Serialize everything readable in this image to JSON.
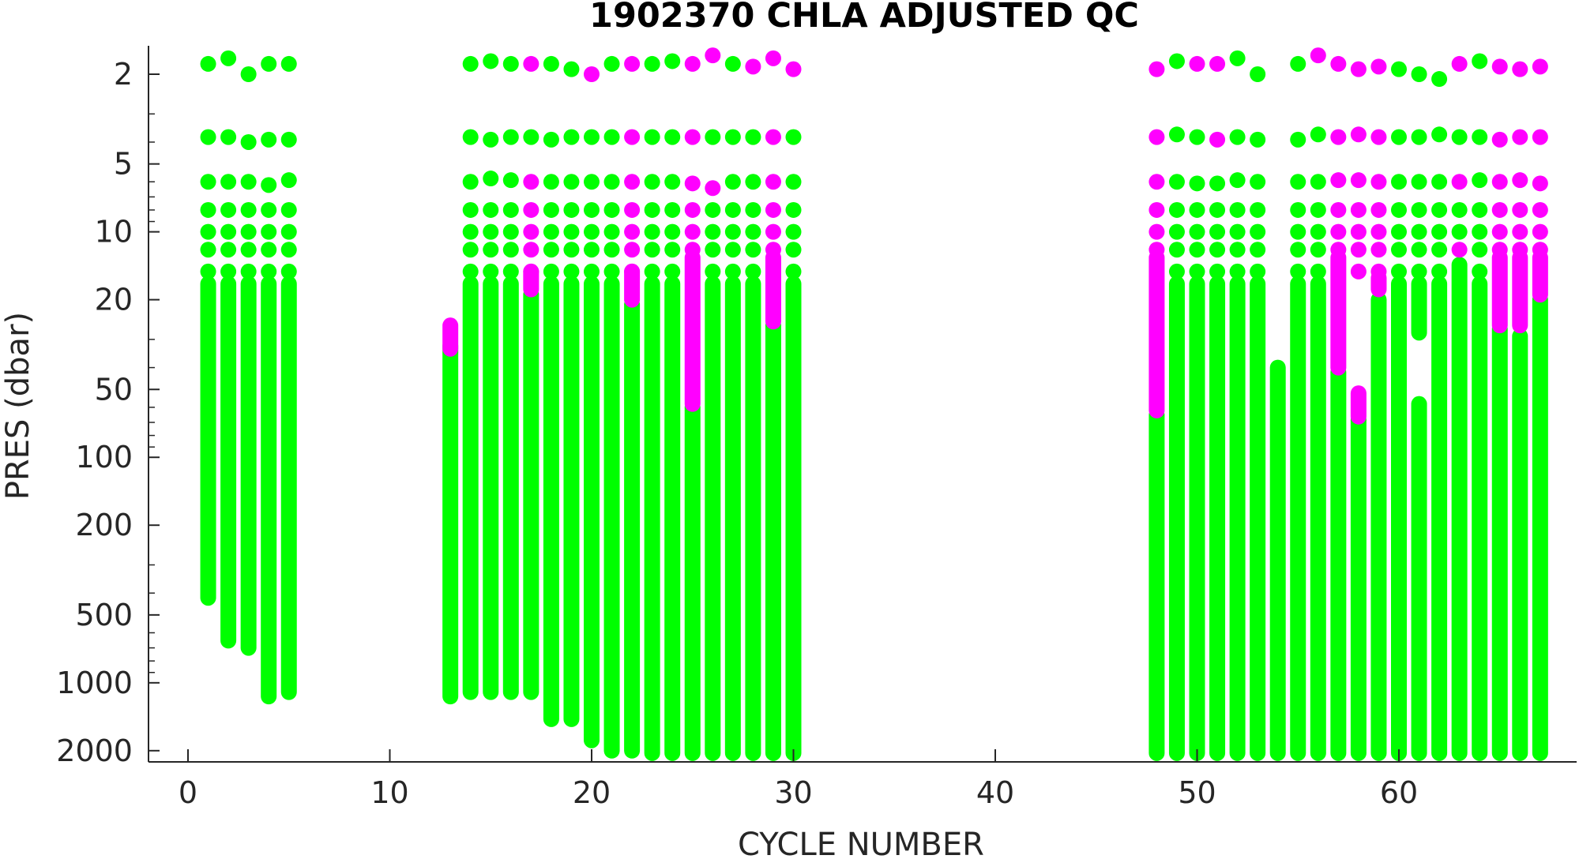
{
  "chart_data": {
    "type": "scatter",
    "title": "1902370  CHLA ADJUSTED QC",
    "xlabel": "CYCLE NUMBER",
    "ylabel": "PRES (dbar)",
    "xlim": [
      -2,
      69
    ],
    "ylim": [
      1.5,
      2300
    ],
    "y_scale": "log",
    "y_reversed": true,
    "xticks": [
      "0",
      "10",
      "20",
      "30",
      "40",
      "50",
      "60"
    ],
    "yticks": [
      "2",
      "5",
      "10",
      "20",
      "50",
      "100",
      "200",
      "500",
      "1000",
      "2000"
    ],
    "legend": "none",
    "grid": false,
    "series": [
      {
        "flag_color": "#00ff00",
        "profiles": [
          {
            "cycle": 1,
            "levels": [
              1.8,
              3.8,
              6,
              8,
              10,
              12,
              15
            ],
            "continuous": [
              17,
              420
            ]
          },
          {
            "cycle": 2,
            "levels": [
              1.7,
              3.8,
              6,
              8,
              10,
              12,
              15
            ],
            "continuous": [
              17,
              650
            ]
          },
          {
            "cycle": 3,
            "levels": [
              2.0,
              4.0,
              6,
              8,
              10,
              12,
              15
            ],
            "continuous": [
              17,
              700
            ]
          },
          {
            "cycle": 4,
            "levels": [
              1.8,
              3.9,
              6.2,
              8,
              10,
              12,
              15
            ],
            "continuous": [
              17,
              1150
            ]
          },
          {
            "cycle": 5,
            "levels": [
              1.8,
              3.9,
              5.9,
              8,
              10,
              12,
              15
            ],
            "continuous": [
              17,
              1100
            ]
          },
          {
            "cycle": 13,
            "levels": [],
            "continuous": [
              32,
              1150
            ]
          },
          {
            "cycle": 14,
            "levels": [
              1.8,
              3.8,
              6,
              8,
              10,
              12,
              15
            ],
            "continuous": [
              17,
              1100
            ]
          },
          {
            "cycle": 15,
            "levels": [
              1.75,
              3.9,
              5.8,
              8,
              10,
              12,
              15
            ],
            "continuous": [
              17,
              1100
            ]
          },
          {
            "cycle": 16,
            "levels": [
              1.8,
              3.8,
              5.9,
              8,
              10,
              12,
              15
            ],
            "continuous": [
              17,
              1100
            ]
          },
          {
            "cycle": 17,
            "levels": [
              3.8
            ],
            "continuous": [
              19,
              1100
            ]
          },
          {
            "cycle": 18,
            "levels": [
              1.8,
              3.9,
              6,
              8,
              10,
              12,
              15
            ],
            "continuous": [
              17,
              1450
            ]
          },
          {
            "cycle": 19,
            "levels": [
              1.9,
              3.8,
              6,
              8,
              10,
              12,
              15
            ],
            "continuous": [
              17,
              1450
            ]
          },
          {
            "cycle": 20,
            "levels": [
              3.8,
              6,
              8,
              10,
              12,
              15
            ],
            "continuous": [
              17,
              1800
            ]
          },
          {
            "cycle": 21,
            "levels": [
              1.8,
              3.8,
              6,
              8,
              10,
              12,
              15
            ],
            "continuous": [
              17,
              2000
            ]
          },
          {
            "cycle": 22,
            "levels": [],
            "continuous": [
              21,
              2000
            ]
          },
          {
            "cycle": 23,
            "levels": [
              1.8,
              3.8,
              6,
              8,
              10,
              12,
              15
            ],
            "continuous": [
              17,
              2050
            ]
          },
          {
            "cycle": 24,
            "levels": [
              1.75,
              3.8,
              6,
              8,
              10,
              12,
              15
            ],
            "continuous": [
              17,
              2050
            ]
          },
          {
            "cycle": 25,
            "levels": [],
            "continuous": [
              60,
              2050
            ]
          },
          {
            "cycle": 26,
            "levels": [
              3.8,
              8,
              10,
              12,
              15
            ],
            "continuous": [
              17,
              2050
            ]
          },
          {
            "cycle": 27,
            "levels": [
              1.8,
              3.8,
              6,
              8,
              10,
              12,
              15
            ],
            "continuous": [
              17,
              2050
            ]
          },
          {
            "cycle": 28,
            "levels": [
              3.8,
              6,
              8,
              10,
              12,
              15
            ],
            "continuous": [
              17,
              2050
            ]
          },
          {
            "cycle": 29,
            "levels": [],
            "continuous": [
              26,
              2050
            ]
          },
          {
            "cycle": 30,
            "levels": [
              3.8,
              6,
              8,
              10,
              12,
              15
            ],
            "continuous": [
              17,
              2050
            ]
          },
          {
            "cycle": 48,
            "levels": [],
            "continuous": [
              65,
              2050
            ]
          },
          {
            "cycle": 49,
            "levels": [
              1.75,
              3.7,
              6,
              8,
              10,
              12,
              15
            ],
            "continuous": [
              17,
              2050
            ]
          },
          {
            "cycle": 50,
            "levels": [
              3.8,
              6.1,
              8,
              10,
              12,
              15
            ],
            "continuous": [
              17,
              2050
            ]
          },
          {
            "cycle": 51,
            "levels": [
              6.1,
              8,
              10,
              12,
              15
            ],
            "continuous": [
              17,
              2050
            ]
          },
          {
            "cycle": 52,
            "levels": [
              1.7,
              3.8,
              5.9,
              8,
              10,
              12,
              15
            ],
            "continuous": [
              17,
              2050
            ]
          },
          {
            "cycle": 53,
            "levels": [
              2.0,
              3.9,
              6,
              8,
              10,
              12,
              15
            ],
            "continuous": [
              17,
              2050
            ]
          },
          {
            "cycle": 54,
            "levels": [],
            "continuous": [
              40,
              2050
            ]
          },
          {
            "cycle": 55,
            "levels": [
              1.8,
              3.9,
              6,
              8,
              10,
              12,
              15
            ],
            "continuous": [
              17,
              2050
            ]
          },
          {
            "cycle": 56,
            "levels": [
              3.7,
              6,
              8,
              10,
              12,
              15
            ],
            "continuous": [
              17,
              2050
            ]
          },
          {
            "cycle": 57,
            "levels": [],
            "continuous": [
              42,
              2050
            ]
          },
          {
            "cycle": 58,
            "levels": [],
            "continuous": [
              68,
              2050
            ]
          },
          {
            "cycle": 59,
            "levels": [],
            "continuous": [
              20,
              2050
            ]
          },
          {
            "cycle": 60,
            "levels": [
              1.9,
              3.8,
              6,
              8,
              10,
              12,
              15
            ],
            "continuous": [
              17,
              2050
            ]
          },
          {
            "cycle": 61,
            "levels": [
              2.0,
              3.8,
              6,
              8,
              10,
              12,
              15
            ],
            "continuous": [
              17,
              28
            ]
          },
          {
            "cycle": 61,
            "levels": [],
            "continuous": [
              58,
              2050
            ]
          },
          {
            "cycle": 62,
            "levels": [
              2.1,
              3.7,
              6,
              8,
              10,
              12,
              15
            ],
            "continuous": [
              17,
              2050
            ]
          },
          {
            "cycle": 63,
            "levels": [
              3.8,
              8,
              10
            ],
            "continuous": [
              14,
              2050
            ]
          },
          {
            "cycle": 64,
            "levels": [
              1.75,
              3.8,
              5.9,
              8,
              10,
              12,
              15
            ],
            "continuous": [
              17,
              2050
            ]
          },
          {
            "cycle": 65,
            "levels": [],
            "continuous": [
              27,
              2050
            ]
          },
          {
            "cycle": 66,
            "levels": [],
            "continuous": [
              29,
              2050
            ]
          },
          {
            "cycle": 67,
            "levels": [],
            "continuous": [
              20,
              2050
            ]
          }
        ]
      },
      {
        "flag_color": "#ff00ff",
        "profiles": [
          {
            "cycle": 13,
            "levels": [],
            "continuous": [
              26,
              33
            ]
          },
          {
            "cycle": 17,
            "levels": [
              1.8,
              6,
              8,
              10,
              12,
              15
            ],
            "continuous": [
              15,
              18
            ]
          },
          {
            "cycle": 20,
            "levels": [
              2.0
            ],
            "continuous": []
          },
          {
            "cycle": 22,
            "levels": [
              1.8,
              3.8,
              6,
              8,
              10,
              12,
              15
            ],
            "continuous": [
              15,
              20
            ]
          },
          {
            "cycle": 25,
            "levels": [
              1.8,
              3.8,
              6.1,
              8,
              10,
              12
            ],
            "continuous": [
              13,
              58
            ]
          },
          {
            "cycle": 26,
            "levels": [
              1.65,
              6.4
            ],
            "continuous": []
          },
          {
            "cycle": 28,
            "levels": [
              1.85
            ],
            "continuous": []
          },
          {
            "cycle": 29,
            "levels": [
              1.7,
              3.8,
              6,
              8,
              10,
              12
            ],
            "continuous": [
              13,
              25
            ]
          },
          {
            "cycle": 30,
            "levels": [
              1.9
            ],
            "continuous": []
          },
          {
            "cycle": 48,
            "levels": [
              1.9,
              3.8,
              6,
              8,
              10,
              12
            ],
            "continuous": [
              13,
              62
            ]
          },
          {
            "cycle": 50,
            "levels": [
              1.8
            ],
            "continuous": []
          },
          {
            "cycle": 51,
            "levels": [
              1.8,
              3.9
            ],
            "continuous": []
          },
          {
            "cycle": 56,
            "levels": [
              1.65
            ],
            "continuous": []
          },
          {
            "cycle": 57,
            "levels": [
              1.8,
              3.8,
              5.9,
              8,
              10,
              12
            ],
            "continuous": [
              13,
              40
            ]
          },
          {
            "cycle": 58,
            "levels": [
              1.9,
              3.7,
              5.9,
              8,
              10,
              12,
              15
            ],
            "continuous": [],
            "extra_segment": [
              52,
              66
            ]
          },
          {
            "cycle": 59,
            "levels": [
              1.85,
              3.8,
              6,
              8,
              10,
              12,
              15
            ],
            "continuous": [
              16,
              18
            ]
          },
          {
            "cycle": 63,
            "levels": [
              1.8,
              6,
              12
            ],
            "continuous": []
          },
          {
            "cycle": 65,
            "levels": [
              1.85,
              3.9,
              6,
              8,
              10,
              12
            ],
            "continuous": [
              13,
              26
            ]
          },
          {
            "cycle": 66,
            "levels": [
              1.9,
              3.8,
              5.9,
              8,
              10,
              12
            ],
            "continuous": [
              13,
              26
            ]
          },
          {
            "cycle": 67,
            "levels": [
              1.85,
              3.8,
              6.1,
              8,
              10,
              12
            ],
            "continuous": [
              13,
              19
            ]
          }
        ]
      }
    ]
  }
}
